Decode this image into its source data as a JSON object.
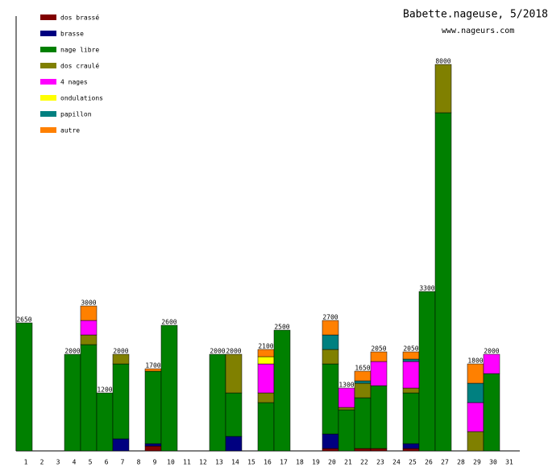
{
  "chart_data": {
    "type": "stacked-bar",
    "title": "Babette.nageuse, 5/2018",
    "subtitle": "www.nageurs.com",
    "categories": [
      "1",
      "2",
      "3",
      "4",
      "5",
      "6",
      "7",
      "8",
      "9",
      "10",
      "11",
      "12",
      "13",
      "14",
      "15",
      "16",
      "17",
      "18",
      "19",
      "20",
      "21",
      "22",
      "23",
      "24",
      "25",
      "26",
      "27",
      "28",
      "29",
      "30",
      "31"
    ],
    "ylim": [
      0,
      9000
    ],
    "legend": "top-left",
    "series": [
      {
        "name": "dos brassé",
        "color": "#800000",
        "values": [
          null,
          null,
          null,
          null,
          null,
          null,
          null,
          null,
          100,
          null,
          null,
          null,
          null,
          null,
          null,
          null,
          null,
          null,
          null,
          50,
          null,
          50,
          50,
          null,
          50,
          null,
          null,
          null,
          null,
          null,
          null
        ]
      },
      {
        "name": "brasse",
        "color": "#000080",
        "values": [
          null,
          null,
          null,
          null,
          null,
          null,
          250,
          null,
          50,
          null,
          null,
          null,
          null,
          300,
          null,
          null,
          null,
          null,
          null,
          300,
          null,
          null,
          null,
          null,
          100,
          null,
          null,
          null,
          null,
          null,
          null
        ]
      },
      {
        "name": "nage libre",
        "color": "#008000",
        "values": [
          2650,
          null,
          null,
          2000,
          2200,
          1200,
          1550,
          null,
          1500,
          2600,
          null,
          null,
          2000,
          900,
          null,
          1000,
          2500,
          null,
          null,
          1450,
          850,
          1050,
          1300,
          null,
          1050,
          3300,
          7000,
          null,
          null,
          1600,
          null
        ]
      },
      {
        "name": "dos craulé",
        "color": "#808000",
        "values": [
          null,
          null,
          null,
          null,
          200,
          null,
          200,
          null,
          null,
          null,
          null,
          null,
          null,
          800,
          null,
          200,
          null,
          null,
          null,
          300,
          50,
          300,
          null,
          null,
          100,
          null,
          1000,
          null,
          400,
          null,
          null
        ]
      },
      {
        "name": "4 nages",
        "color": "#ff00ff",
        "values": [
          null,
          null,
          null,
          null,
          300,
          null,
          null,
          null,
          null,
          null,
          null,
          null,
          null,
          null,
          null,
          600,
          null,
          null,
          null,
          null,
          400,
          null,
          500,
          null,
          550,
          null,
          null,
          null,
          600,
          400,
          null
        ]
      },
      {
        "name": "ondulations",
        "color": "#ffff00",
        "values": [
          null,
          null,
          null,
          null,
          null,
          null,
          null,
          null,
          null,
          null,
          null,
          null,
          null,
          null,
          null,
          150,
          null,
          null,
          null,
          null,
          null,
          null,
          null,
          null,
          null,
          null,
          null,
          null,
          null,
          null,
          null
        ]
      },
      {
        "name": "papillon",
        "color": "#008080",
        "values": [
          null,
          null,
          null,
          null,
          null,
          null,
          null,
          null,
          null,
          null,
          null,
          null,
          null,
          null,
          null,
          null,
          null,
          null,
          null,
          300,
          null,
          50,
          null,
          null,
          50,
          null,
          null,
          null,
          400,
          null,
          null
        ]
      },
      {
        "name": "autre",
        "color": "#ff8000",
        "values": [
          null,
          null,
          null,
          null,
          300,
          null,
          null,
          null,
          50,
          null,
          null,
          null,
          null,
          null,
          null,
          150,
          null,
          null,
          null,
          300,
          null,
          200,
          200,
          null,
          150,
          null,
          null,
          null,
          400,
          null,
          null
        ]
      }
    ],
    "totals": [
      2650,
      null,
      null,
      2000,
      3000,
      1200,
      2000,
      null,
      1700,
      2600,
      null,
      null,
      2000,
      2000,
      null,
      2100,
      2500,
      null,
      null,
      2700,
      1300,
      1650,
      2050,
      null,
      2050,
      3300,
      8000,
      null,
      1800,
      2000,
      null
    ]
  }
}
